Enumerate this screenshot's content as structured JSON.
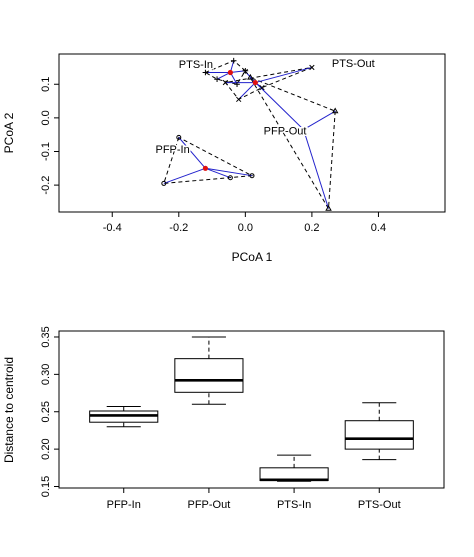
{
  "chart_data": [
    {
      "type": "scatter",
      "xlabel": "PCoA 1",
      "ylabel": "PCoA 2",
      "xlim": [
        -0.56,
        0.6
      ],
      "ylim": [
        -0.28,
        0.19
      ],
      "xticks": [
        -0.4,
        -0.2,
        0.0,
        0.2,
        0.4
      ],
      "xtick_labels": [
        "-0.4",
        "-0.2",
        "0.0",
        "0.2",
        "0.4"
      ],
      "yticks": [
        -0.2,
        -0.1,
        0.0,
        0.1
      ],
      "ytick_labels": [
        "-0.2",
        "-0.1",
        "0.0",
        "0.1"
      ],
      "groups": [
        {
          "name": "PTS-In",
          "marker": "plus",
          "centroid": [
            -0.045,
            0.135
          ],
          "points": [
            [
              -0.12,
              0.135
            ],
            [
              -0.035,
              0.17
            ],
            [
              -0.085,
              0.115
            ],
            [
              -0.025,
              0.1
            ],
            [
              0.0,
              0.14
            ]
          ],
          "hull": [
            0,
            1,
            4,
            3,
            2
          ],
          "label_at": [
            -0.2,
            0.148
          ]
        },
        {
          "name": "PTS-Out",
          "marker": "cross",
          "centroid": [
            0.03,
            0.105
          ],
          "points": [
            [
              0.2,
              0.15
            ],
            [
              -0.06,
              0.105
            ],
            [
              0.0,
              0.138
            ],
            [
              -0.02,
              0.055
            ],
            [
              0.05,
              0.09
            ]
          ],
          "hull": [
            0,
            4,
            3,
            1
          ],
          "label_at": [
            0.26,
            0.152
          ]
        },
        {
          "name": "PFP-Out",
          "marker": "triangle",
          "centroid": [
            0.175,
            -0.035
          ],
          "points": [
            [
              0.27,
              0.02
            ],
            [
              0.25,
              -0.27
            ],
            [
              0.015,
              0.12
            ]
          ],
          "hull": [
            0,
            1,
            2
          ],
          "label_at": [
            0.055,
            -0.05
          ]
        },
        {
          "name": "PFP-In",
          "marker": "circle",
          "centroid": [
            -0.12,
            -0.15
          ],
          "points": [
            [
              -0.2,
              -0.058
            ],
            [
              -0.245,
              -0.195
            ],
            [
              0.02,
              -0.172
            ],
            [
              -0.045,
              -0.178
            ]
          ],
          "hull": [
            0,
            1,
            2
          ],
          "label_at": [
            -0.27,
            -0.105
          ]
        }
      ]
    },
    {
      "type": "box",
      "ylabel": "Distance to centroid",
      "ylim": [
        0.148,
        0.358
      ],
      "yticks": [
        0.15,
        0.2,
        0.25,
        0.3,
        0.35
      ],
      "ytick_labels": [
        "0.15",
        "0.20",
        "0.25",
        "0.30",
        "0.35"
      ],
      "categories": [
        "PFP-In",
        "PFP-Out",
        "PTS-In",
        "PTS-Out"
      ],
      "boxes": [
        {
          "min": 0.23,
          "q1": 0.236,
          "median": 0.245,
          "q3": 0.251,
          "max": 0.257
        },
        {
          "min": 0.26,
          "q1": 0.276,
          "median": 0.292,
          "q3": 0.321,
          "max": 0.35
        },
        {
          "min": 0.157,
          "q1": 0.158,
          "median": 0.159,
          "q3": 0.175,
          "max": 0.192
        },
        {
          "min": 0.186,
          "q1": 0.2,
          "median": 0.214,
          "q3": 0.238,
          "max": 0.262
        }
      ]
    }
  ]
}
